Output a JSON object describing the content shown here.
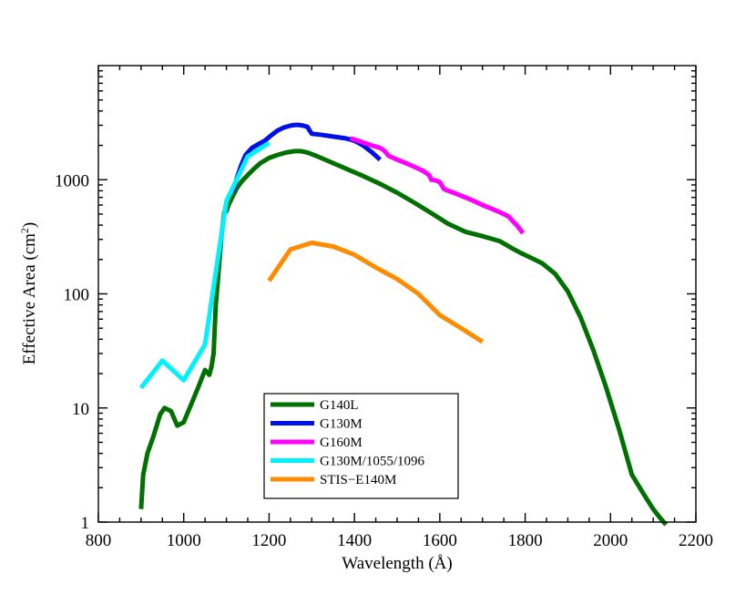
{
  "chart_data": {
    "type": "line",
    "title": "",
    "xlabel": "Wavelength (Å)",
    "ylabel_main": "Effective Area (cm",
    "ylabel_sup": "2",
    "ylabel_close": ")",
    "xscale": "linear",
    "yscale": "log",
    "xlim": [
      800,
      2200
    ],
    "ylim": [
      1,
      10000
    ],
    "xticks": [
      800,
      1000,
      1200,
      1400,
      1600,
      1800,
      2000,
      2200
    ],
    "xtick_labels": [
      "800",
      "1000",
      "1200",
      "1400",
      "1600",
      "1800",
      "2000",
      "2200"
    ],
    "yticks": [
      1,
      10,
      100,
      1000
    ],
    "ytick_labels": [
      "1",
      "10",
      "100",
      "1000"
    ],
    "legend_position": "bottom-center",
    "series": [
      {
        "name": "G140L",
        "color": "#007000",
        "x": [
          900,
          905,
          915,
          930,
          945,
          955,
          970,
          985,
          1000,
          1015,
          1035,
          1050,
          1060,
          1065,
          1070,
          1075,
          1082,
          1088,
          1095,
          1100,
          1105,
          1115,
          1125,
          1135,
          1150,
          1165,
          1180,
          1200,
          1220,
          1240,
          1260,
          1275,
          1290,
          1310,
          1340,
          1380,
          1420,
          1460,
          1500,
          1540,
          1580,
          1620,
          1660,
          1700,
          1740,
          1770,
          1790,
          1810,
          1840,
          1870,
          1900,
          1930,
          1960,
          1990,
          2020,
          2050,
          2080,
          2100,
          2115,
          2130
        ],
        "y": [
          1.3,
          2.6,
          4.0,
          5.8,
          8.8,
          10,
          9.4,
          7.0,
          7.5,
          10.2,
          15.5,
          21.5,
          19.5,
          23,
          30,
          80,
          160,
          310,
          520,
          530,
          600,
          720,
          850,
          960,
          1100,
          1250,
          1400,
          1550,
          1650,
          1730,
          1780,
          1780,
          1730,
          1620,
          1450,
          1250,
          1080,
          920,
          770,
          630,
          510,
          410,
          350,
          320,
          290,
          250,
          228,
          210,
          185,
          150,
          105,
          62,
          32,
          15,
          6.5,
          2.6,
          1.7,
          1.3,
          1.1,
          0.95
        ]
      },
      {
        "name": "G130M",
        "color": "#0010e8",
        "x": [
          1115,
          1125,
          1135,
          1145,
          1160,
          1175,
          1190,
          1205,
          1220,
          1235,
          1250,
          1260,
          1270,
          1280,
          1290,
          1295,
          1300,
          1320,
          1350,
          1380,
          1400,
          1420,
          1440,
          1460
        ],
        "y": [
          780,
          1050,
          1350,
          1650,
          1900,
          2050,
          2200,
          2450,
          2700,
          2870,
          2980,
          3020,
          3020,
          2980,
          2900,
          2700,
          2530,
          2480,
          2390,
          2300,
          2200,
          2000,
          1750,
          1500
        ]
      },
      {
        "name": "G160M",
        "color": "#ff00ff",
        "x": [
          1390,
          1400,
          1420,
          1440,
          1460,
          1470,
          1480,
          1500,
          1520,
          1540,
          1560,
          1575,
          1580,
          1590,
          1600,
          1610,
          1620,
          1640,
          1660,
          1680,
          1700,
          1720,
          1740,
          1760,
          1780,
          1795
        ],
        "y": [
          2300,
          2250,
          2120,
          2000,
          1900,
          1800,
          1620,
          1500,
          1400,
          1300,
          1200,
          1100,
          1000,
          990,
          950,
          830,
          800,
          750,
          700,
          650,
          600,
          560,
          520,
          480,
          400,
          340
        ]
      },
      {
        "name": "G130M/1055/1096",
        "color": "#00f2ff",
        "x": [
          900,
          950,
          1000,
          1050,
          1100,
          1150,
          1200
        ],
        "y": [
          15,
          26,
          17.5,
          36,
          650,
          1600,
          2100
        ]
      },
      {
        "name": "STIS−E140M",
        "color": "#ff8c00",
        "x": [
          1200,
          1250,
          1300,
          1350,
          1400,
          1450,
          1500,
          1550,
          1600,
          1650,
          1700
        ],
        "y": [
          130,
          245,
          280,
          260,
          220,
          170,
          135,
          100,
          65,
          50,
          38
        ]
      }
    ]
  }
}
